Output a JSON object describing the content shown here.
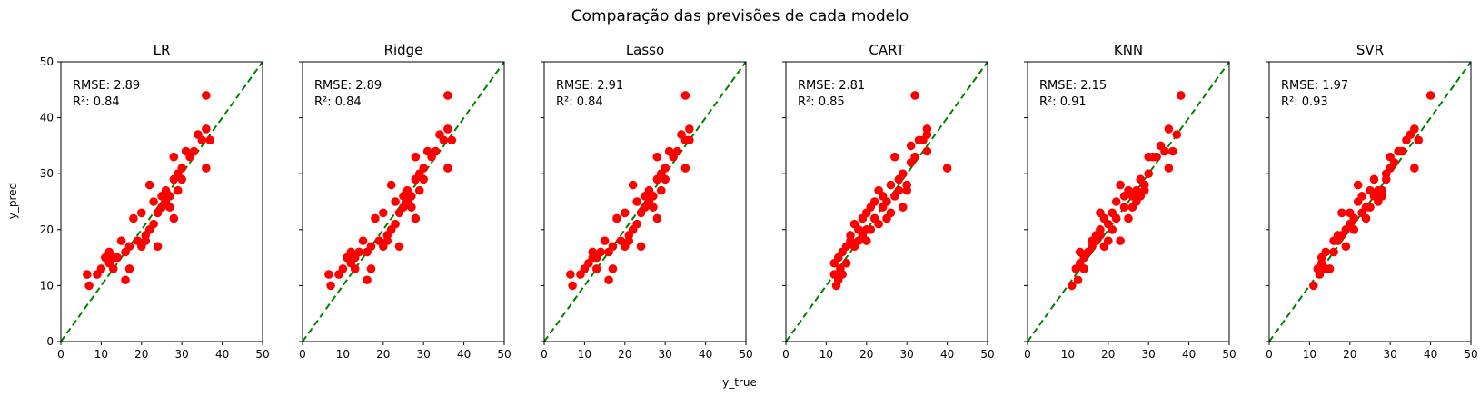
{
  "figure": {
    "suptitle": "Comparação das previsões de cada modelo",
    "xlabel": "y_true",
    "ylabel": "y_pred"
  },
  "colors": {
    "points": "#ff0000",
    "diagonal": "#008000",
    "axes": "#000000"
  },
  "chart_data": [
    {
      "type": "scatter",
      "title": "LR",
      "xlim": [
        0,
        50
      ],
      "ylim": [
        0,
        50
      ],
      "xticks": [
        0,
        10,
        20,
        30,
        40,
        50
      ],
      "yticks": [
        0,
        10,
        20,
        30,
        40,
        50
      ],
      "reference_line": "y = x",
      "annotations": [
        "RMSE: 2.89",
        "R²: 0.84"
      ],
      "points": [
        [
          6.5,
          12
        ],
        [
          7,
          10
        ],
        [
          9,
          12
        ],
        [
          10,
          13
        ],
        [
          11,
          15
        ],
        [
          12,
          14
        ],
        [
          12,
          16
        ],
        [
          13,
          13
        ],
        [
          13,
          15
        ],
        [
          14,
          15
        ],
        [
          15,
          18
        ],
        [
          16,
          11
        ],
        [
          16,
          16
        ],
        [
          17,
          17
        ],
        [
          17,
          13
        ],
        [
          18,
          22
        ],
        [
          19,
          18
        ],
        [
          20,
          17
        ],
        [
          20,
          23
        ],
        [
          21,
          19
        ],
        [
          21,
          18
        ],
        [
          22,
          20
        ],
        [
          22,
          28
        ],
        [
          23,
          21
        ],
        [
          23,
          25
        ],
        [
          24,
          17
        ],
        [
          24,
          23
        ],
        [
          25,
          24
        ],
        [
          25,
          26
        ],
        [
          26,
          25
        ],
        [
          26,
          27
        ],
        [
          27,
          24
        ],
        [
          27,
          26
        ],
        [
          28,
          29
        ],
        [
          28,
          33
        ],
        [
          28,
          22
        ],
        [
          29,
          27
        ],
        [
          29,
          30
        ],
        [
          30,
          31
        ],
        [
          30,
          29
        ],
        [
          31,
          34
        ],
        [
          32,
          33
        ],
        [
          33,
          34
        ],
        [
          34,
          37
        ],
        [
          35,
          36
        ],
        [
          36,
          44
        ],
        [
          36,
          38
        ],
        [
          36,
          31
        ],
        [
          37,
          36
        ]
      ]
    },
    {
      "type": "scatter",
      "title": "Ridge",
      "xlim": [
        0,
        50
      ],
      "ylim": [
        0,
        50
      ],
      "xticks": [
        0,
        10,
        20,
        30,
        40,
        50
      ],
      "yticks": [
        0,
        10,
        20,
        30,
        40,
        50
      ],
      "reference_line": "y = x",
      "annotations": [
        "RMSE: 2.89",
        "R²: 0.84"
      ],
      "points": [
        [
          6.5,
          12
        ],
        [
          7,
          10
        ],
        [
          9,
          12
        ],
        [
          10,
          13
        ],
        [
          11,
          15
        ],
        [
          12,
          14
        ],
        [
          12,
          16
        ],
        [
          13,
          13
        ],
        [
          13,
          15
        ],
        [
          14,
          16
        ],
        [
          15,
          18
        ],
        [
          16,
          11
        ],
        [
          16,
          16
        ],
        [
          17,
          17
        ],
        [
          17,
          13
        ],
        [
          18,
          22
        ],
        [
          19,
          18
        ],
        [
          20,
          17
        ],
        [
          20,
          23
        ],
        [
          21,
          19
        ],
        [
          21,
          18
        ],
        [
          22,
          20
        ],
        [
          22,
          28
        ],
        [
          23,
          21
        ],
        [
          23,
          25
        ],
        [
          24,
          17
        ],
        [
          24,
          23
        ],
        [
          25,
          24
        ],
        [
          25,
          26
        ],
        [
          26,
          25
        ],
        [
          26,
          27
        ],
        [
          27,
          24
        ],
        [
          27,
          26
        ],
        [
          28,
          29
        ],
        [
          28,
          33
        ],
        [
          28,
          22
        ],
        [
          29,
          27
        ],
        [
          29,
          30
        ],
        [
          30,
          31
        ],
        [
          30,
          29
        ],
        [
          31,
          34
        ],
        [
          32,
          33
        ],
        [
          33,
          34
        ],
        [
          34,
          37
        ],
        [
          35,
          36
        ],
        [
          36,
          44
        ],
        [
          36,
          38
        ],
        [
          36,
          31
        ],
        [
          37,
          36
        ]
      ]
    },
    {
      "type": "scatter",
      "title": "Lasso",
      "xlim": [
        0,
        50
      ],
      "ylim": [
        0,
        50
      ],
      "xticks": [
        0,
        10,
        20,
        30,
        40,
        50
      ],
      "yticks": [
        0,
        10,
        20,
        30,
        40,
        50
      ],
      "reference_line": "y = x",
      "annotations": [
        "RMSE: 2.91",
        "R²: 0.84"
      ],
      "points": [
        [
          6.5,
          12
        ],
        [
          7,
          10
        ],
        [
          9,
          12
        ],
        [
          10,
          13
        ],
        [
          11,
          14
        ],
        [
          12,
          15
        ],
        [
          12,
          16
        ],
        [
          13,
          13
        ],
        [
          13,
          15
        ],
        [
          14,
          16
        ],
        [
          15,
          18
        ],
        [
          16,
          11
        ],
        [
          16,
          16
        ],
        [
          17,
          17
        ],
        [
          17,
          13
        ],
        [
          18,
          22
        ],
        [
          19,
          18
        ],
        [
          20,
          17
        ],
        [
          20,
          23
        ],
        [
          21,
          19
        ],
        [
          21,
          18
        ],
        [
          22,
          20
        ],
        [
          22,
          28
        ],
        [
          23,
          21
        ],
        [
          23,
          25
        ],
        [
          24,
          17
        ],
        [
          24,
          23
        ],
        [
          25,
          24
        ],
        [
          25,
          26
        ],
        [
          26,
          25
        ],
        [
          26,
          27
        ],
        [
          27,
          24
        ],
        [
          27,
          26
        ],
        [
          28,
          29
        ],
        [
          28,
          33
        ],
        [
          28,
          22
        ],
        [
          29,
          27
        ],
        [
          29,
          30
        ],
        [
          30,
          31
        ],
        [
          30,
          29
        ],
        [
          31,
          34
        ],
        [
          32,
          33
        ],
        [
          33,
          34
        ],
        [
          34,
          37
        ],
        [
          35,
          36
        ],
        [
          35,
          44
        ],
        [
          36,
          38
        ],
        [
          35,
          31
        ],
        [
          36,
          36
        ]
      ]
    },
    {
      "type": "scatter",
      "title": "CART",
      "xlim": [
        0,
        50
      ],
      "ylim": [
        0,
        50
      ],
      "xticks": [
        0,
        10,
        20,
        30,
        40,
        50
      ],
      "yticks": [
        0,
        10,
        20,
        30,
        40,
        50
      ],
      "reference_line": "y = x",
      "annotations": [
        "RMSE: 2.81",
        "R²: 0.85"
      ],
      "points": [
        [
          12,
          14
        ],
        [
          12,
          12
        ],
        [
          12.5,
          10
        ],
        [
          13,
          15
        ],
        [
          13,
          11
        ],
        [
          13.5,
          13
        ],
        [
          14,
          16
        ],
        [
          14,
          12
        ],
        [
          15,
          14
        ],
        [
          15,
          17
        ],
        [
          16,
          18
        ],
        [
          16,
          19
        ],
        [
          17,
          21
        ],
        [
          17,
          17
        ],
        [
          18,
          18
        ],
        [
          18,
          20
        ],
        [
          19,
          19
        ],
        [
          19,
          22
        ],
        [
          20,
          20
        ],
        [
          20,
          23
        ],
        [
          20,
          18
        ],
        [
          21,
          24
        ],
        [
          21,
          20
        ],
        [
          22,
          22
        ],
        [
          22,
          25
        ],
        [
          23,
          21
        ],
        [
          23,
          27
        ],
        [
          24,
          24
        ],
        [
          24,
          26
        ],
        [
          25,
          25
        ],
        [
          25,
          22
        ],
        [
          26,
          28
        ],
        [
          26,
          23
        ],
        [
          27,
          33
        ],
        [
          27,
          26
        ],
        [
          28,
          27
        ],
        [
          28,
          29
        ],
        [
          29,
          30
        ],
        [
          29,
          24
        ],
        [
          30,
          28
        ],
        [
          30,
          27
        ],
        [
          31,
          32
        ],
        [
          31,
          35
        ],
        [
          32,
          44
        ],
        [
          32,
          33
        ],
        [
          33,
          36
        ],
        [
          34,
          36
        ],
        [
          35,
          37
        ],
        [
          35,
          38
        ],
        [
          35,
          34
        ],
        [
          40,
          31
        ]
      ]
    },
    {
      "type": "scatter",
      "title": "KNN",
      "xlim": [
        0,
        50
      ],
      "ylim": [
        0,
        50
      ],
      "xticks": [
        0,
        10,
        20,
        30,
        40,
        50
      ],
      "yticks": [
        0,
        10,
        20,
        30,
        40,
        50
      ],
      "reference_line": "y = x",
      "annotations": [
        "RMSE: 2.15",
        "R²: 0.91"
      ],
      "points": [
        [
          11,
          10
        ],
        [
          12,
          13
        ],
        [
          12.5,
          11
        ],
        [
          13,
          14
        ],
        [
          13,
          16
        ],
        [
          14,
          15
        ],
        [
          14,
          13
        ],
        [
          15,
          16
        ],
        [
          16,
          18
        ],
        [
          16,
          17
        ],
        [
          17,
          18
        ],
        [
          17,
          19
        ],
        [
          18,
          20
        ],
        [
          18,
          23
        ],
        [
          18,
          19
        ],
        [
          19,
          22
        ],
        [
          19,
          17
        ],
        [
          20,
          21
        ],
        [
          20,
          18
        ],
        [
          21,
          23
        ],
        [
          21,
          20
        ],
        [
          22,
          22
        ],
        [
          22,
          25
        ],
        [
          23,
          28
        ],
        [
          23,
          18
        ],
        [
          24,
          24
        ],
        [
          24,
          26
        ],
        [
          25,
          27
        ],
        [
          25,
          22
        ],
        [
          26,
          26
        ],
        [
          26,
          24
        ],
        [
          27,
          27
        ],
        [
          27,
          25
        ],
        [
          28,
          29
        ],
        [
          28,
          26
        ],
        [
          29,
          28
        ],
        [
          29,
          27
        ],
        [
          30,
          33
        ],
        [
          30,
          30
        ],
        [
          31,
          33
        ],
        [
          32,
          33
        ],
        [
          33,
          35
        ],
        [
          34,
          34
        ],
        [
          35,
          38
        ],
        [
          35,
          31
        ],
        [
          36,
          34
        ],
        [
          37,
          37
        ],
        [
          38,
          44
        ]
      ]
    },
    {
      "type": "scatter",
      "title": "SVR",
      "xlim": [
        0,
        50
      ],
      "ylim": [
        0,
        50
      ],
      "xticks": [
        0,
        10,
        20,
        30,
        40,
        50
      ],
      "yticks": [
        0,
        10,
        20,
        30,
        40,
        50
      ],
      "reference_line": "y = x",
      "annotations": [
        "RMSE: 1.97",
        "R²: 0.93"
      ],
      "points": [
        [
          11,
          10
        ],
        [
          12,
          13
        ],
        [
          12.5,
          12
        ],
        [
          13,
          14
        ],
        [
          13,
          15
        ],
        [
          14,
          16
        ],
        [
          14,
          13
        ],
        [
          15,
          13
        ],
        [
          16,
          18
        ],
        [
          16,
          16
        ],
        [
          17,
          18
        ],
        [
          17,
          19
        ],
        [
          18,
          19
        ],
        [
          18,
          23
        ],
        [
          19,
          20
        ],
        [
          19,
          17
        ],
        [
          20,
          21
        ],
        [
          20,
          23
        ],
        [
          21,
          22
        ],
        [
          21,
          20
        ],
        [
          22,
          25
        ],
        [
          22,
          28
        ],
        [
          23,
          23
        ],
        [
          23,
          26
        ],
        [
          24,
          24
        ],
        [
          24,
          22
        ],
        [
          25,
          27
        ],
        [
          25,
          24
        ],
        [
          26,
          26
        ],
        [
          26,
          29
        ],
        [
          27,
          25
        ],
        [
          27,
          27
        ],
        [
          28,
          27
        ],
        [
          28,
          26
        ],
        [
          29,
          29
        ],
        [
          29,
          30
        ],
        [
          30,
          33
        ],
        [
          30,
          31
        ],
        [
          31,
          32
        ],
        [
          32,
          34
        ],
        [
          33,
          34
        ],
        [
          34,
          36
        ],
        [
          35,
          37
        ],
        [
          36,
          38
        ],
        [
          36,
          31
        ],
        [
          37,
          36
        ],
        [
          40,
          44
        ]
      ]
    }
  ]
}
